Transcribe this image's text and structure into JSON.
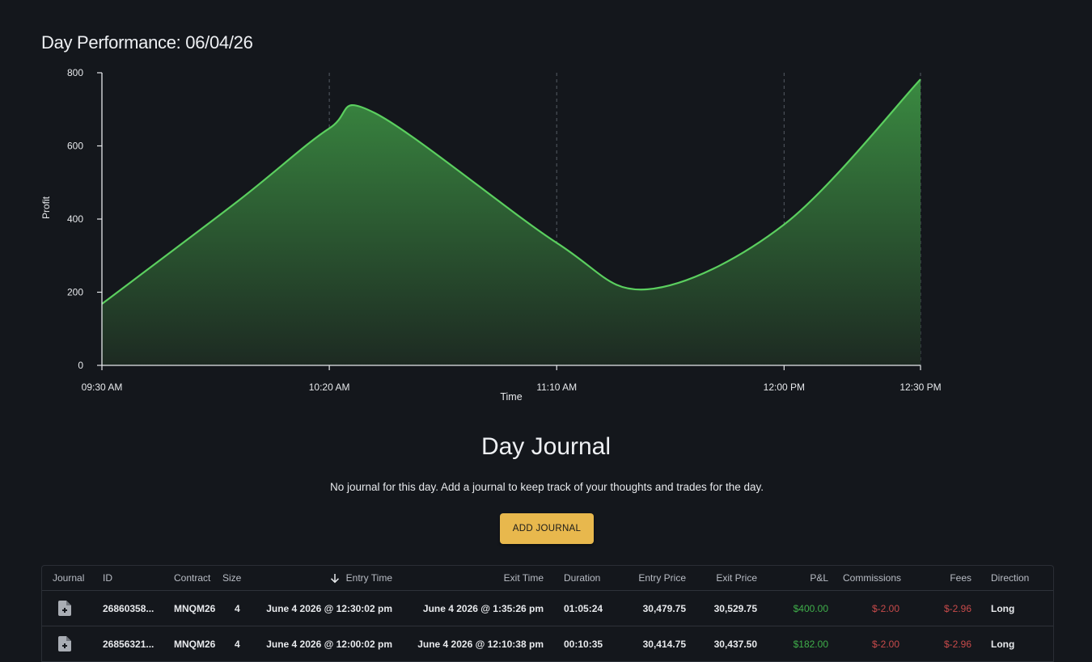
{
  "page": {
    "title": "Day Performance: 06/04/26"
  },
  "chart_data": {
    "type": "area",
    "xlabel": "Time",
    "ylabel": "Profit",
    "x_ticks": [
      "09:30 AM",
      "10:20 AM",
      "11:10 AM",
      "12:00 PM",
      "12:30 PM"
    ],
    "y_ticks": [
      0,
      200,
      400,
      600,
      800
    ],
    "ylim": [
      0,
      800
    ],
    "grid": "vertical dashed",
    "colors": {
      "line": "#5bcf5f",
      "fill_top": "#3a8a41",
      "fill_bottom": "#1d2a22"
    },
    "points": [
      {
        "time": "09:30 AM",
        "profit": 168
      },
      {
        "time": "10:00 AM",
        "profit": 450
      },
      {
        "time": "10:20 AM",
        "profit": 648
      },
      {
        "time": "10:30 AM",
        "profit": 690
      },
      {
        "time": "11:10 AM",
        "profit": 335
      },
      {
        "time": "11:30 AM",
        "profit": 208
      },
      {
        "time": "12:00 PM",
        "profit": 385
      },
      {
        "time": "12:30 PM",
        "profit": 782
      }
    ]
  },
  "journal": {
    "title": "Day Journal",
    "message": "No journal for this day. Add a journal to keep track of your thoughts and trades for the day.",
    "add_button": "ADD JOURNAL"
  },
  "table": {
    "sort_icon": "arrow-down-icon",
    "columns": {
      "journal": "Journal",
      "id": "ID",
      "contract": "Contract",
      "size": "Size",
      "entry_time": "Entry Time",
      "exit_time": "Exit Time",
      "duration": "Duration",
      "entry_price": "Entry Price",
      "exit_price": "Exit Price",
      "pnl": "P&L",
      "commissions": "Commissions",
      "fees": "Fees",
      "direction": "Direction"
    },
    "rows": [
      {
        "journal_icon": "note-add-icon",
        "id": "26860358...",
        "contract": "MNQM26",
        "size": "4",
        "entry_time": "June 4 2026 @ 12:30:02 pm",
        "exit_time": "June 4 2026 @ 1:35:26 pm",
        "duration": "01:05:24",
        "entry_price": "30,479.75",
        "exit_price": "30,529.75",
        "pnl": "$400.00",
        "commissions": "$-2.00",
        "fees": "$-2.96",
        "direction": "Long"
      },
      {
        "journal_icon": "note-add-icon",
        "id": "26856321...",
        "contract": "MNQM26",
        "size": "4",
        "entry_time": "June 4 2026 @ 12:00:02 pm",
        "exit_time": "June 4 2026 @ 12:10:38 pm",
        "duration": "00:10:35",
        "entry_price": "30,414.75",
        "exit_price": "30,437.50",
        "pnl": "$182.00",
        "commissions": "$-2.00",
        "fees": "$-2.96",
        "direction": "Long"
      }
    ]
  }
}
